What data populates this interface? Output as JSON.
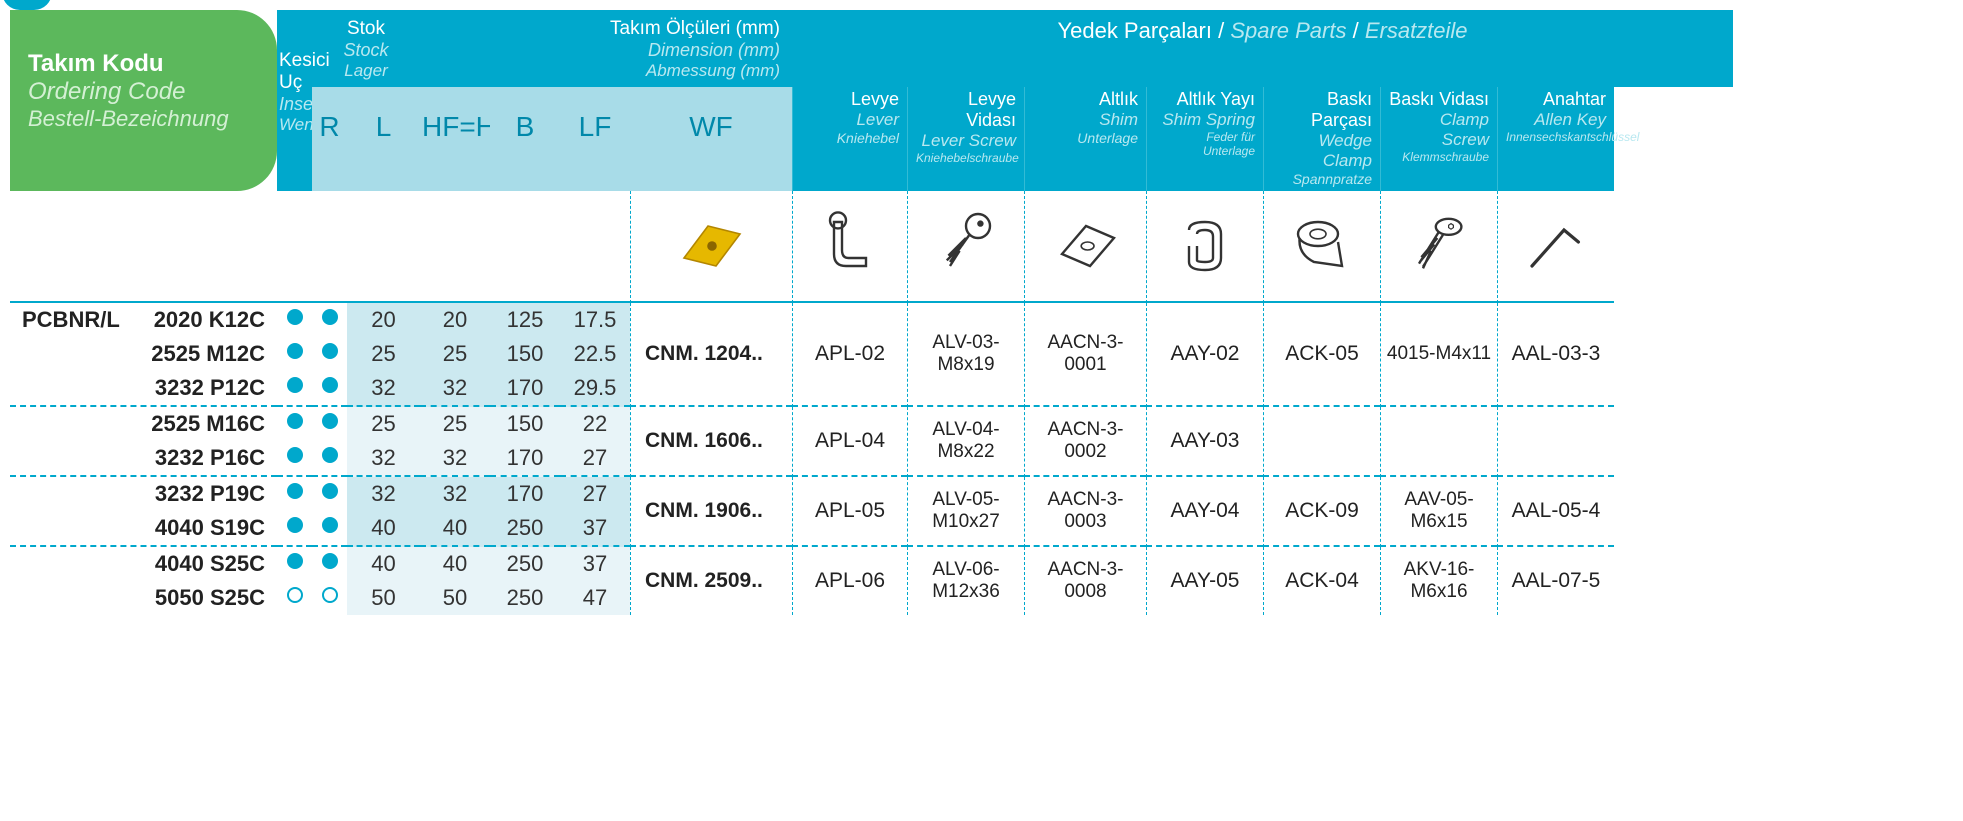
{
  "header": {
    "ordering_code": {
      "tr": "Takım Kodu",
      "en": "Ordering Code",
      "de": "Bestell-Bezeichnung"
    },
    "stock": {
      "tr": "Stok",
      "en": "Stock",
      "de": "Lager",
      "R": "R",
      "L": "L"
    },
    "dimensions": {
      "tr": "Takım Ölçüleri (mm)",
      "en": "Dimension (mm)",
      "de": "Abmessung (mm)",
      "HF": "HF=H",
      "B": "B",
      "LF": "LF",
      "WF": "WF"
    },
    "insert": {
      "tr": "Kesici Uç",
      "en": "Insert",
      "de": "Wendeschneidplatte"
    },
    "spare_parts_title": {
      "tr": "Yedek Parçaları",
      "en": "Spare Parts",
      "de": "Ersatzteile"
    },
    "parts": {
      "lever": {
        "tr": "Levye",
        "en": "Lever",
        "de": "Kniehebel"
      },
      "lever_screw": {
        "tr": "Levye Vidası",
        "en": "Lever Screw",
        "de": "Kniehebelschraube"
      },
      "shim": {
        "tr": "Altlık",
        "en": "Shim",
        "de": "Unterlage"
      },
      "shim_spring": {
        "tr": "Altlık Yayı",
        "en": "Shim Spring",
        "de": "Feder für Unterlage"
      },
      "wedge_clamp": {
        "tr": "Baskı Parçası",
        "en": "Wedge Clamp",
        "de": "Spannpratze"
      },
      "clamp_screw": {
        "tr": "Baskı Vidası",
        "en": "Clamp Screw",
        "de": "Klemmschraube"
      },
      "allen_key": {
        "tr": "Anahtar",
        "en": "Allen Key",
        "de": "Innensechskantschlüssel"
      }
    }
  },
  "prefix": "PCBNR/L",
  "colors": {
    "cyan": "#00a8cc",
    "green": "#5cb85c",
    "light_cyan": "#a8dce8",
    "dim_bg1": "#cce9f0",
    "dim_bg2": "#e8f4f8",
    "text": "#222222"
  },
  "rows": [
    {
      "code": "2020 K12C",
      "R": "filled",
      "L": "filled",
      "HF": "20",
      "B": "20",
      "LF": "125",
      "WF": "17.5",
      "stripe": false
    },
    {
      "code": "2525 M12C",
      "R": "filled",
      "L": "filled",
      "HF": "25",
      "B": "25",
      "LF": "150",
      "WF": "22.5",
      "stripe": false
    },
    {
      "code": "3232 P12C",
      "R": "filled",
      "L": "filled",
      "HF": "32",
      "B": "32",
      "LF": "170",
      "WF": "29.5",
      "stripe": false,
      "sep": true
    },
    {
      "code": "2525 M16C",
      "R": "filled",
      "L": "filled",
      "HF": "25",
      "B": "25",
      "LF": "150",
      "WF": "22",
      "stripe": true
    },
    {
      "code": "3232 P16C",
      "R": "filled",
      "L": "filled",
      "HF": "32",
      "B": "32",
      "LF": "170",
      "WF": "27",
      "stripe": true,
      "sep": true
    },
    {
      "code": "3232 P19C",
      "R": "filled",
      "L": "filled",
      "HF": "32",
      "B": "32",
      "LF": "170",
      "WF": "27",
      "stripe": false
    },
    {
      "code": "4040 S19C",
      "R": "filled",
      "L": "filled",
      "HF": "40",
      "B": "40",
      "LF": "250",
      "WF": "37",
      "stripe": false,
      "sep": true
    },
    {
      "code": "4040 S25C",
      "R": "filled",
      "L": "filled",
      "HF": "40",
      "B": "40",
      "LF": "250",
      "WF": "37",
      "stripe": true
    },
    {
      "code": "5050 S25C",
      "R": "empty",
      "L": "empty",
      "HF": "50",
      "B": "50",
      "LF": "250",
      "WF": "47",
      "stripe": true
    }
  ],
  "groups": [
    {
      "rowspan": 3,
      "insert": "CNM. 1204..",
      "lever": "APL-02",
      "lever_screw": "ALV-03-M8x19",
      "shim": "AACN-3-0001",
      "shim_spring": "AAY-02",
      "wedge_clamp": "ACK-05",
      "clamp_screw": "4015-M4x11",
      "allen_key": "AAL-03-3"
    },
    {
      "rowspan": 2,
      "insert": "CNM. 1606..",
      "lever": "APL-04",
      "lever_screw": "ALV-04-M8x22",
      "shim": "AACN-3-0002",
      "shim_spring": "AAY-03",
      "wedge_clamp": "",
      "clamp_screw": "",
      "allen_key": ""
    },
    {
      "rowspan": 2,
      "insert": "CNM. 1906..",
      "lever": "APL-05",
      "lever_screw": "ALV-05-M10x27",
      "shim": "AACN-3-0003",
      "shim_spring": "AAY-04",
      "wedge_clamp": "ACK-09",
      "clamp_screw": "AAV-05-M6x15",
      "allen_key": "AAL-05-4"
    },
    {
      "rowspan": 2,
      "insert": "CNM. 2509..",
      "lever": "APL-06",
      "lever_screw": "ALV-06-M12x36",
      "shim": "AACN-3-0008",
      "shim_spring": "AAY-05",
      "wedge_clamp": "ACK-04",
      "clamp_screw": "AKV-16-M6x16",
      "allen_key": "AAL-07-5"
    }
  ]
}
